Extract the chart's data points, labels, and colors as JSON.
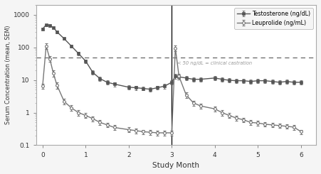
{
  "title": "",
  "xlabel": "Study Month",
  "ylabel": "Serum Concentration (mean, SEM)",
  "xlim": [
    -0.15,
    6.35
  ],
  "ylim_log": [
    0.1,
    2000
  ],
  "dashed_line_y": 50,
  "castration_label": "< 50 ng/dL = clinical castration",
  "background_color": "#f5f5f5",
  "plot_bg_color": "#ffffff",
  "border_color": "#999999",
  "testosterone_x": [
    0,
    0.083,
    0.167,
    0.25,
    0.333,
    0.5,
    0.667,
    0.833,
    1.0,
    1.167,
    1.333,
    1.5,
    1.667,
    2.0,
    2.167,
    2.333,
    2.5,
    2.667,
    2.833,
    3.0,
    3.083,
    3.167,
    3.333,
    3.5,
    3.667,
    4.0,
    4.167,
    4.333,
    4.5,
    4.667,
    4.833,
    5.0,
    5.167,
    5.333,
    5.5,
    5.667,
    5.833,
    6.0
  ],
  "testosterone_y": [
    370,
    490,
    470,
    410,
    300,
    185,
    110,
    65,
    38,
    17,
    11,
    8.5,
    7.5,
    6.0,
    5.8,
    5.5,
    5.2,
    5.8,
    6.5,
    8.5,
    13,
    12.5,
    11.5,
    10.5,
    10.5,
    11.5,
    10.5,
    9.8,
    9.5,
    9.5,
    9.0,
    9.5,
    9.5,
    9.0,
    8.5,
    9.0,
    8.5,
    8.5
  ],
  "testosterone_err": [
    28,
    38,
    38,
    32,
    25,
    16,
    11,
    7,
    4.5,
    2.5,
    1.8,
    1.3,
    1.1,
    0.9,
    0.9,
    0.7,
    0.7,
    0.8,
    1.1,
    1.4,
    2.2,
    2.0,
    1.8,
    1.6,
    1.6,
    1.8,
    1.6,
    1.4,
    1.4,
    1.4,
    1.3,
    1.4,
    1.4,
    1.3,
    1.2,
    1.3,
    1.2,
    1.2
  ],
  "leuprolide_x": [
    0,
    0.083,
    0.167,
    0.25,
    0.333,
    0.5,
    0.667,
    0.833,
    1.0,
    1.167,
    1.333,
    1.5,
    1.667,
    2.0,
    2.167,
    2.333,
    2.5,
    2.667,
    2.833,
    3.0,
    3.083,
    3.167,
    3.333,
    3.5,
    3.667,
    4.0,
    4.167,
    4.333,
    4.5,
    4.667,
    4.833,
    5.0,
    5.167,
    5.333,
    5.5,
    5.667,
    5.833,
    6.0
  ],
  "leuprolide_y": [
    6.5,
    110,
    45,
    16,
    7,
    2.2,
    1.4,
    1.0,
    0.82,
    0.65,
    0.5,
    0.42,
    0.35,
    0.3,
    0.28,
    0.26,
    0.25,
    0.24,
    0.24,
    0.24,
    95,
    13,
    3.5,
    2.0,
    1.6,
    1.3,
    1.0,
    0.82,
    0.68,
    0.6,
    0.5,
    0.48,
    0.44,
    0.42,
    0.4,
    0.38,
    0.36,
    0.26
  ],
  "leuprolide_err": [
    1.2,
    22,
    9,
    3.5,
    1.5,
    0.45,
    0.28,
    0.18,
    0.14,
    0.11,
    0.09,
    0.07,
    0.06,
    0.05,
    0.05,
    0.04,
    0.04,
    0.04,
    0.04,
    0.04,
    18,
    2.5,
    0.7,
    0.35,
    0.3,
    0.22,
    0.18,
    0.14,
    0.12,
    0.1,
    0.09,
    0.08,
    0.07,
    0.07,
    0.06,
    0.06,
    0.06,
    0.04
  ],
  "testosterone_color": "#555555",
  "leuprolide_color": "#777777",
  "testosterone_label": "Testosterone (ng/dL)",
  "leuprolide_label": "Leuprolide (ng/mL)",
  "dashed_color": "#666666",
  "castration_text_color": "#999999",
  "xticks": [
    0,
    1,
    2,
    3,
    4,
    5,
    6
  ],
  "yticks_log": [
    0.1,
    1,
    10,
    100,
    1000
  ],
  "vertical_line_x": 3.0
}
